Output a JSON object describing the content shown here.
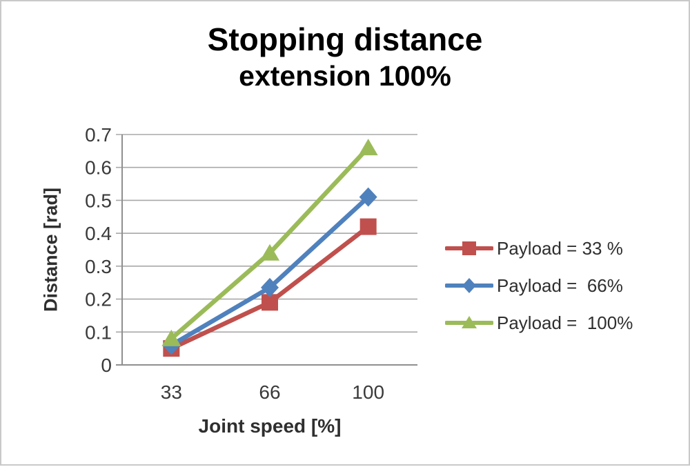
{
  "title": {
    "line1": "Stopping distance",
    "line2": "extension 100%"
  },
  "chart_data": {
    "type": "line",
    "title": "Stopping distance",
    "subtitle": "extension 100%",
    "xlabel": "Joint speed [%]",
    "ylabel": "Distance [rad]",
    "categories": [
      "33",
      "66",
      "100"
    ],
    "ylim": [
      0,
      0.7
    ],
    "ytick_labels": [
      "0",
      "0.1",
      "0.2",
      "0.3",
      "0.4",
      "0.5",
      "0.6",
      "0.7"
    ],
    "grid": "horizontal",
    "legend_position": "right",
    "series": [
      {
        "name": "Payload = 33 %",
        "marker": "square",
        "color": "#c0504d",
        "values": [
          0.05,
          0.19,
          0.42
        ]
      },
      {
        "name": "Payload =  66%",
        "marker": "diamond",
        "color": "#4f81bd",
        "values": [
          0.06,
          0.235,
          0.51
        ]
      },
      {
        "name": "Payload =  100%",
        "marker": "triangle",
        "color": "#9bbb59",
        "values": [
          0.08,
          0.34,
          0.66
        ]
      }
    ],
    "colors": {
      "gridline": "#a8a8a8",
      "axis": "#8f8f8f",
      "tick_text": "#3a3a3a",
      "title_text": "#000000",
      "frame_border": "#c9c9c9"
    }
  }
}
